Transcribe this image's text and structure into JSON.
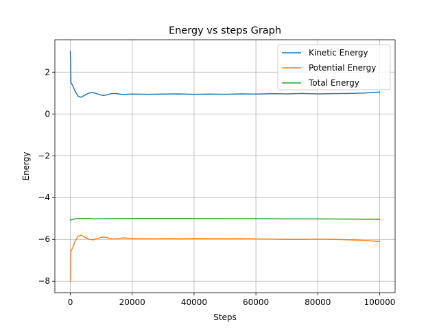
{
  "chart_data": {
    "type": "line",
    "title": "Energy vs steps Graph",
    "xlabel": "Steps",
    "ylabel": "Energy",
    "xlim": [
      -5000,
      105000
    ],
    "ylim": [
      -8.55,
      3.55
    ],
    "xticks": [
      0,
      20000,
      40000,
      60000,
      80000,
      100000
    ],
    "xtick_labels": [
      "0",
      "20000",
      "40000",
      "60000",
      "80000",
      "100000"
    ],
    "yticks": [
      -8,
      -6,
      -4,
      -2,
      0,
      2
    ],
    "ytick_labels": [
      "−8",
      "−6",
      "−4",
      "−2",
      "0",
      "2"
    ],
    "grid": true,
    "legend_position": "top-right",
    "series": [
      {
        "name": "Kinetic Energy",
        "color": "#1f77b4",
        "x": [
          0,
          100,
          200,
          400,
          800,
          1500,
          2500,
          3500,
          4500,
          6000,
          7500,
          9000,
          10500,
          12000,
          13500,
          15000,
          17000,
          20000,
          25000,
          30000,
          35000,
          40000,
          45000,
          50000,
          55000,
          60000,
          65000,
          70000,
          75000,
          80000,
          85000,
          90000,
          95000,
          100000
        ],
        "values": [
          3.0,
          2.5,
          1.5,
          1.45,
          1.35,
          1.1,
          0.85,
          0.8,
          0.88,
          1.0,
          1.02,
          0.95,
          0.88,
          0.92,
          0.98,
          0.97,
          0.93,
          0.95,
          0.94,
          0.95,
          0.96,
          0.94,
          0.95,
          0.94,
          0.96,
          0.95,
          0.97,
          0.96,
          0.98,
          0.96,
          0.97,
          0.98,
          1.0,
          1.05
        ]
      },
      {
        "name": "Potential Energy",
        "color": "#ff7f0e",
        "x": [
          0,
          100,
          200,
          400,
          800,
          1500,
          2500,
          3500,
          4500,
          6000,
          7500,
          9000,
          10500,
          12000,
          13500,
          15000,
          17000,
          20000,
          25000,
          30000,
          35000,
          40000,
          45000,
          50000,
          55000,
          60000,
          65000,
          70000,
          75000,
          80000,
          85000,
          90000,
          95000,
          100000
        ],
        "values": [
          -8.0,
          -7.5,
          -6.55,
          -6.5,
          -6.4,
          -6.1,
          -5.85,
          -5.8,
          -5.88,
          -6.0,
          -6.02,
          -5.95,
          -5.88,
          -5.92,
          -5.98,
          -5.97,
          -5.93,
          -5.95,
          -5.97,
          -5.96,
          -5.97,
          -5.95,
          -5.96,
          -5.97,
          -5.96,
          -5.98,
          -5.99,
          -6.0,
          -6.0,
          -5.99,
          -6.0,
          -6.02,
          -6.05,
          -6.1
        ]
      },
      {
        "name": "Total Energy",
        "color": "#2ca02c",
        "x": [
          0,
          500,
          1500,
          3000,
          5000,
          8000,
          12000,
          20000,
          30000,
          40000,
          50000,
          60000,
          70000,
          80000,
          90000,
          100000
        ],
        "values": [
          -5.08,
          -5.05,
          -5.02,
          -5.0,
          -5.0,
          -5.02,
          -5.01,
          -5.0,
          -5.0,
          -5.0,
          -5.01,
          -5.01,
          -5.02,
          -5.02,
          -5.03,
          -5.04
        ]
      }
    ]
  }
}
